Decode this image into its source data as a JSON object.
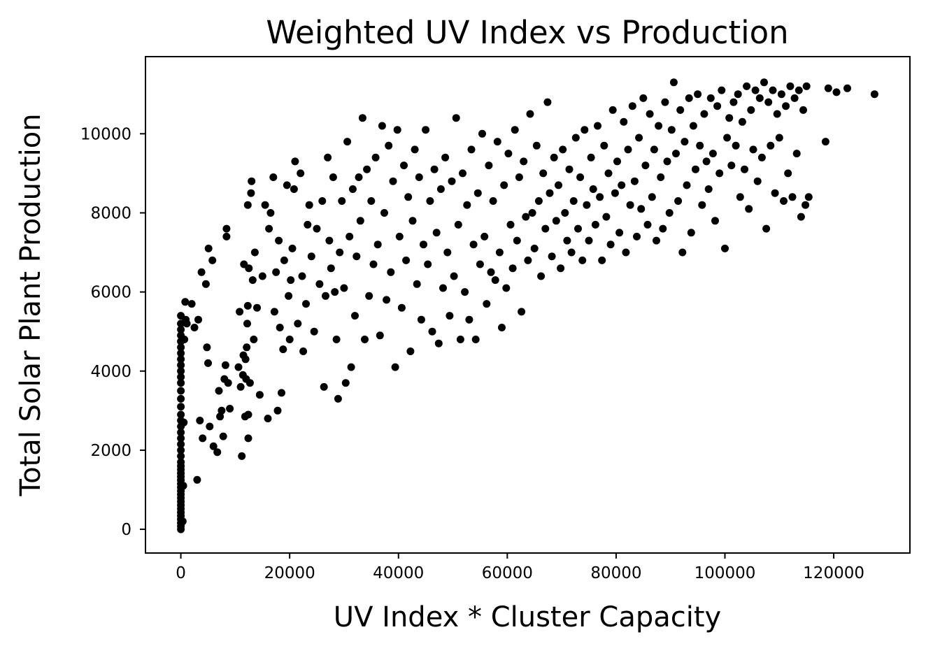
{
  "chart_data": {
    "type": "scatter",
    "title": "Weighted UV Index vs Production",
    "xlabel": "UV Index * Cluster Capacity",
    "ylabel": "Total Solar Plant Production",
    "xlim": [
      -6500,
      134000
    ],
    "ylim": [
      -600,
      11950
    ],
    "xticks": [
      0,
      20000,
      40000,
      60000,
      80000,
      100000,
      120000
    ],
    "xtick_labels": [
      "0",
      "20000",
      "40000",
      "60000",
      "80000",
      "100000",
      "120000"
    ],
    "yticks": [
      0,
      2000,
      4000,
      6000,
      8000,
      10000
    ],
    "ytick_labels": [
      "0",
      "2000",
      "4000",
      "6000",
      "8000",
      "10000"
    ],
    "grid": false,
    "marker_color": "#000000",
    "points": [
      [
        0,
        0
      ],
      [
        0,
        80
      ],
      [
        0,
        160
      ],
      [
        0,
        250
      ],
      [
        0,
        340
      ],
      [
        0,
        430
      ],
      [
        0,
        520
      ],
      [
        0,
        610
      ],
      [
        0,
        700
      ],
      [
        0,
        790
      ],
      [
        0,
        880
      ],
      [
        0,
        970
      ],
      [
        0,
        1060
      ],
      [
        0,
        1150
      ],
      [
        0,
        1240
      ],
      [
        0,
        1330
      ],
      [
        0,
        1420
      ],
      [
        0,
        1510
      ],
      [
        0,
        1600
      ],
      [
        0,
        1700
      ],
      [
        0,
        1850
      ],
      [
        0,
        2000
      ],
      [
        0,
        2150
      ],
      [
        0,
        2300
      ],
      [
        0,
        2450
      ],
      [
        0,
        2600
      ],
      [
        0,
        2750
      ],
      [
        0,
        2900
      ],
      [
        0,
        3100
      ],
      [
        0,
        3300
      ],
      [
        0,
        3500
      ],
      [
        0,
        3700
      ],
      [
        0,
        3850
      ],
      [
        0,
        4000
      ],
      [
        0,
        4150
      ],
      [
        0,
        4300
      ],
      [
        0,
        4450
      ],
      [
        0,
        4600
      ],
      [
        0,
        4750
      ],
      [
        0,
        4900
      ],
      [
        0,
        5050
      ],
      [
        0,
        5200
      ],
      [
        0,
        5400
      ],
      [
        350,
        200
      ],
      [
        450,
        1100
      ],
      [
        550,
        2700
      ],
      [
        650,
        4800
      ],
      [
        800,
        5750
      ],
      [
        900,
        5300
      ],
      [
        1100,
        5200
      ],
      [
        2000,
        5700
      ],
      [
        2500,
        5100
      ],
      [
        3000,
        1250
      ],
      [
        3200,
        5300
      ],
      [
        3500,
        2750
      ],
      [
        3800,
        6500
      ],
      [
        4000,
        2300
      ],
      [
        4600,
        6200
      ],
      [
        4800,
        4600
      ],
      [
        5000,
        4200
      ],
      [
        5100,
        7100
      ],
      [
        5300,
        2600
      ],
      [
        5800,
        6800
      ],
      [
        6000,
        2100
      ],
      [
        6700,
        1950
      ],
      [
        7000,
        3500
      ],
      [
        7200,
        2850
      ],
      [
        7500,
        3000
      ],
      [
        7800,
        2350
      ],
      [
        8000,
        3800
      ],
      [
        8200,
        4150
      ],
      [
        8400,
        7600
      ],
      [
        8400,
        7400
      ],
      [
        8700,
        3700
      ],
      [
        9000,
        3050
      ],
      [
        10600,
        4100
      ],
      [
        10800,
        5500
      ],
      [
        11000,
        3600
      ],
      [
        11200,
        1850
      ],
      [
        11400,
        3900
      ],
      [
        11500,
        4400
      ],
      [
        11600,
        6700
      ],
      [
        11800,
        2850
      ],
      [
        11900,
        4300
      ],
      [
        12000,
        3800
      ],
      [
        12100,
        4600
      ],
      [
        12200,
        5200
      ],
      [
        12300,
        5650
      ],
      [
        12300,
        8200
      ],
      [
        12400,
        2300
      ],
      [
        12400,
        2900
      ],
      [
        12500,
        6600
      ],
      [
        12700,
        3700
      ],
      [
        12900,
        8500
      ],
      [
        13000,
        8800
      ],
      [
        13200,
        6300
      ],
      [
        13400,
        4800
      ],
      [
        13600,
        7000
      ],
      [
        14000,
        5600
      ],
      [
        14500,
        3400
      ],
      [
        15000,
        6400
      ],
      [
        15500,
        8200
      ],
      [
        16000,
        2800
      ],
      [
        16200,
        7600
      ],
      [
        16500,
        8000
      ],
      [
        17000,
        8900
      ],
      [
        17200,
        5500
      ],
      [
        17500,
        6500
      ],
      [
        17800,
        3000
      ],
      [
        18000,
        7300
      ],
      [
        18200,
        5100
      ],
      [
        18500,
        3450
      ],
      [
        18800,
        4550
      ],
      [
        19000,
        6800
      ],
      [
        19500,
        8700
      ],
      [
        19800,
        5900
      ],
      [
        20000,
        4800
      ],
      [
        20200,
        6300
      ],
      [
        20500,
        7100
      ],
      [
        20800,
        8600
      ],
      [
        21000,
        9300
      ],
      [
        21500,
        5200
      ],
      [
        22000,
        9000
      ],
      [
        22300,
        6400
      ],
      [
        22500,
        4500
      ],
      [
        23000,
        5700
      ],
      [
        23300,
        7700
      ],
      [
        23600,
        8200
      ],
      [
        24000,
        6900
      ],
      [
        24500,
        5000
      ],
      [
        25000,
        7600
      ],
      [
        25500,
        6200
      ],
      [
        26000,
        8300
      ],
      [
        26300,
        3600
      ],
      [
        26600,
        5900
      ],
      [
        27000,
        9400
      ],
      [
        27300,
        7300
      ],
      [
        27600,
        6600
      ],
      [
        28000,
        8900
      ],
      [
        28300,
        6000
      ],
      [
        28600,
        4800
      ],
      [
        28900,
        3300
      ],
      [
        29200,
        7000
      ],
      [
        29600,
        8300
      ],
      [
        30000,
        6100
      ],
      [
        30300,
        3700
      ],
      [
        30600,
        9800
      ],
      [
        31000,
        7400
      ],
      [
        31300,
        4100
      ],
      [
        31600,
        8600
      ],
      [
        32000,
        5400
      ],
      [
        32300,
        6900
      ],
      [
        32700,
        8900
      ],
      [
        33000,
        7800
      ],
      [
        33400,
        10400
      ],
      [
        33800,
        4800
      ],
      [
        34200,
        9100
      ],
      [
        34600,
        5900
      ],
      [
        35000,
        8300
      ],
      [
        35400,
        6700
      ],
      [
        35800,
        9400
      ],
      [
        36200,
        7200
      ],
      [
        36600,
        4900
      ],
      [
        37000,
        10200
      ],
      [
        37400,
        8000
      ],
      [
        37800,
        5800
      ],
      [
        38200,
        9700
      ],
      [
        38600,
        6500
      ],
      [
        39000,
        8800
      ],
      [
        39400,
        4100
      ],
      [
        39800,
        10100
      ],
      [
        40200,
        7400
      ],
      [
        40600,
        5600
      ],
      [
        41000,
        9200
      ],
      [
        41400,
        6800
      ],
      [
        41800,
        8400
      ],
      [
        42200,
        4500
      ],
      [
        42600,
        7800
      ],
      [
        43000,
        9600
      ],
      [
        43400,
        6200
      ],
      [
        43800,
        8900
      ],
      [
        44200,
        5300
      ],
      [
        44600,
        7200
      ],
      [
        45000,
        10100
      ],
      [
        45400,
        6700
      ],
      [
        45800,
        8300
      ],
      [
        46200,
        5000
      ],
      [
        46600,
        9100
      ],
      [
        47000,
        7500
      ],
      [
        47400,
        4700
      ],
      [
        47800,
        8600
      ],
      [
        48200,
        6100
      ],
      [
        48600,
        9400
      ],
      [
        49000,
        7000
      ],
      [
        49400,
        5400
      ],
      [
        49800,
        8800
      ],
      [
        50200,
        6400
      ],
      [
        50600,
        10400
      ],
      [
        51000,
        7700
      ],
      [
        51400,
        4800
      ],
      [
        51800,
        9000
      ],
      [
        52200,
        6000
      ],
      [
        52600,
        8200
      ],
      [
        53000,
        5300
      ],
      [
        53400,
        9600
      ],
      [
        53800,
        7200
      ],
      [
        54200,
        4800
      ],
      [
        54600,
        8500
      ],
      [
        55000,
        6700
      ],
      [
        55400,
        10000
      ],
      [
        55800,
        7400
      ],
      [
        56200,
        5700
      ],
      [
        56600,
        9200
      ],
      [
        57000,
        6500
      ],
      [
        57400,
        8300
      ],
      [
        57800,
        6300
      ],
      [
        58200,
        9800
      ],
      [
        58600,
        7000
      ],
      [
        59000,
        5100
      ],
      [
        59400,
        8700
      ],
      [
        59800,
        6100
      ],
      [
        60200,
        9500
      ],
      [
        60600,
        7700
      ],
      [
        61000,
        6600
      ],
      [
        61400,
        10100
      ],
      [
        61800,
        7300
      ],
      [
        62200,
        8900
      ],
      [
        62600,
        5500
      ],
      [
        63000,
        9300
      ],
      [
        63400,
        7900
      ],
      [
        63800,
        6800
      ],
      [
        64200,
        10500
      ],
      [
        64600,
        8000
      ],
      [
        65000,
        7100
      ],
      [
        65400,
        9700
      ],
      [
        65800,
        8300
      ],
      [
        66200,
        6400
      ],
      [
        66600,
        9000
      ],
      [
        67000,
        7600
      ],
      [
        67400,
        10800
      ],
      [
        67800,
        8500
      ],
      [
        68200,
        6900
      ],
      [
        68600,
        9400
      ],
      [
        69000,
        7800
      ],
      [
        69400,
        8700
      ],
      [
        69800,
        6600
      ],
      [
        70200,
        9600
      ],
      [
        70600,
        8000
      ],
      [
        71000,
        7300
      ],
      [
        71400,
        9100
      ],
      [
        71800,
        7000
      ],
      [
        72200,
        8300
      ],
      [
        72600,
        9900
      ],
      [
        73000,
        7600
      ],
      [
        73400,
        8900
      ],
      [
        73800,
        6800
      ],
      [
        74200,
        10100
      ],
      [
        74600,
        8200
      ],
      [
        75000,
        7300
      ],
      [
        75400,
        9400
      ],
      [
        75800,
        8600
      ],
      [
        76200,
        7700
      ],
      [
        76600,
        10200
      ],
      [
        77000,
        8400
      ],
      [
        77400,
        6800
      ],
      [
        77800,
        9700
      ],
      [
        78200,
        7900
      ],
      [
        78600,
        9000
      ],
      [
        79000,
        7200
      ],
      [
        79400,
        10600
      ],
      [
        79800,
        8500
      ],
      [
        80200,
        9300
      ],
      [
        80600,
        7500
      ],
      [
        81000,
        8700
      ],
      [
        81400,
        10300
      ],
      [
        81800,
        7000
      ],
      [
        82200,
        9600
      ],
      [
        82600,
        8200
      ],
      [
        83000,
        10700
      ],
      [
        83400,
        8800
      ],
      [
        83800,
        7400
      ],
      [
        84200,
        9900
      ],
      [
        84600,
        8100
      ],
      [
        85000,
        10900
      ],
      [
        85400,
        9200
      ],
      [
        85800,
        7700
      ],
      [
        86200,
        10500
      ],
      [
        86600,
        8400
      ],
      [
        87000,
        9600
      ],
      [
        87400,
        7300
      ],
      [
        87800,
        10200
      ],
      [
        88200,
        8900
      ],
      [
        88600,
        7600
      ],
      [
        89000,
        10800
      ],
      [
        89400,
        9300
      ],
      [
        89800,
        8000
      ],
      [
        90200,
        10100
      ],
      [
        90600,
        11300
      ],
      [
        91000,
        9500
      ],
      [
        91400,
        8300
      ],
      [
        91800,
        10600
      ],
      [
        92200,
        7000
      ],
      [
        92600,
        9800
      ],
      [
        93000,
        8700
      ],
      [
        93400,
        10900
      ],
      [
        93800,
        7500
      ],
      [
        94200,
        10200
      ],
      [
        94600,
        9100
      ],
      [
        95000,
        11000
      ],
      [
        95400,
        9700
      ],
      [
        95800,
        8200
      ],
      [
        96200,
        10500
      ],
      [
        96600,
        9300
      ],
      [
        97000,
        8600
      ],
      [
        97400,
        10900
      ],
      [
        97800,
        9500
      ],
      [
        98200,
        7800
      ],
      [
        98600,
        10700
      ],
      [
        99000,
        9000
      ],
      [
        99400,
        11100
      ],
      [
        100000,
        7100
      ],
      [
        100400,
        9900
      ],
      [
        100800,
        10400
      ],
      [
        101200,
        9200
      ],
      [
        101600,
        10800
      ],
      [
        102000,
        9700
      ],
      [
        102400,
        11000
      ],
      [
        102800,
        8400
      ],
      [
        103200,
        10300
      ],
      [
        103600,
        9100
      ],
      [
        104000,
        11200
      ],
      [
        104400,
        8100
      ],
      [
        104800,
        10600
      ],
      [
        105200,
        9600
      ],
      [
        105600,
        11100
      ],
      [
        106000,
        8800
      ],
      [
        106400,
        10900
      ],
      [
        106800,
        9400
      ],
      [
        107200,
        11300
      ],
      [
        107600,
        7600
      ],
      [
        108000,
        10800
      ],
      [
        108400,
        9700
      ],
      [
        108800,
        11100
      ],
      [
        109200,
        8500
      ],
      [
        109600,
        10500
      ],
      [
        110000,
        9900
      ],
      [
        110400,
        11000
      ],
      [
        110800,
        8300
      ],
      [
        111200,
        10700
      ],
      [
        111600,
        9000
      ],
      [
        112000,
        11200
      ],
      [
        112400,
        8400
      ],
      [
        112800,
        10900
      ],
      [
        113200,
        9500
      ],
      [
        113600,
        11100
      ],
      [
        114000,
        7900
      ],
      [
        114400,
        10600
      ],
      [
        114800,
        8200
      ],
      [
        115000,
        11200
      ],
      [
        115400,
        8400
      ],
      [
        118500,
        9800
      ],
      [
        119000,
        11150
      ],
      [
        120500,
        11050
      ],
      [
        122500,
        11150
      ],
      [
        127500,
        11000
      ]
    ]
  }
}
